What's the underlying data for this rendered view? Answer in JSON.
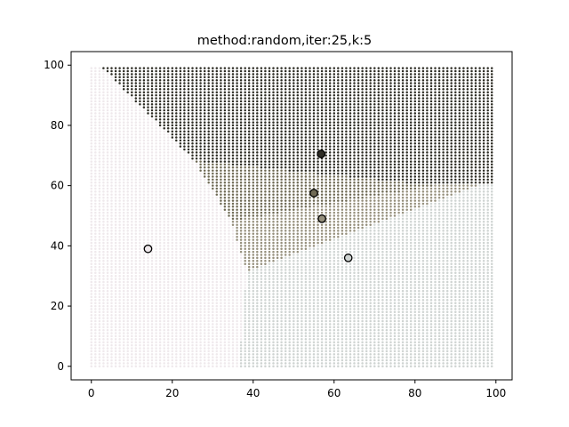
{
  "chart_data": {
    "type": "scatter",
    "title": "method:random,iter:25,k:5",
    "xlabel": "",
    "ylabel": "",
    "xlim": [
      -5,
      104
    ],
    "ylim": [
      -4.5,
      104.5
    ],
    "xticks": [
      0,
      20,
      40,
      60,
      80,
      100
    ],
    "yticks": [
      0,
      20,
      40,
      60,
      80,
      100
    ],
    "grid": false,
    "background_points": {
      "description_of_grid": "integer lattice 0-99 on both axes, each point colored by nearest centroid",
      "x_range": [
        0,
        99
      ],
      "y_range": [
        0,
        99
      ],
      "step": 1
    },
    "clusters": [
      {
        "centroid": [
          14,
          39
        ],
        "color": "#efe9ec"
      },
      {
        "centroid": [
          63.5,
          36
        ],
        "color": "#cfd4d2"
      },
      {
        "centroid": [
          57,
          49
        ],
        "color": "#958f7c"
      },
      {
        "centroid": [
          55,
          57.5
        ],
        "color": "#6f6a55"
      },
      {
        "centroid": [
          56.8,
          70.5
        ],
        "color": "#2e2d25"
      }
    ]
  }
}
